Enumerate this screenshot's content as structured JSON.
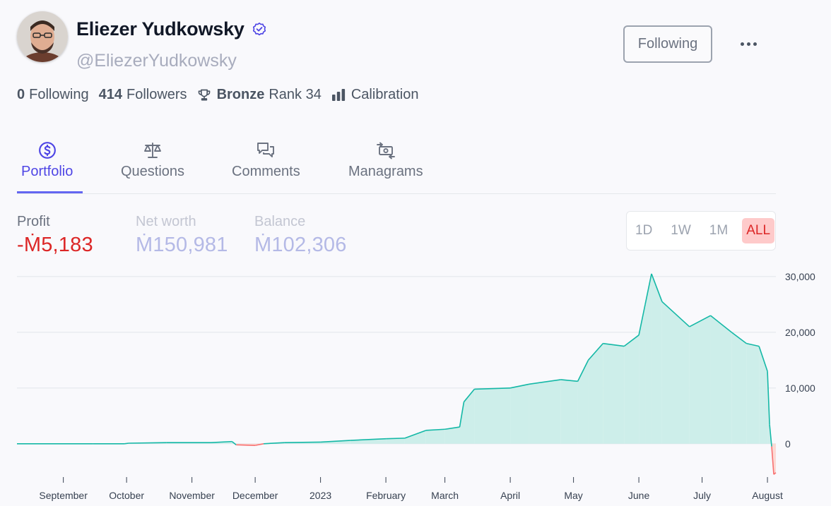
{
  "profile": {
    "name": "Eliezer Yudkowsky",
    "handle": "@EliezerYudkowsky",
    "follow_label": "Following",
    "verified_icon": "verified-badge-icon",
    "avatar_icon": "user-avatar"
  },
  "stats": {
    "following_count": "0",
    "following_label": "Following",
    "followers_count": "414",
    "followers_label": "Followers",
    "league": "Bronze",
    "rank_label": "Rank 34",
    "calibration_label": "Calibration"
  },
  "tabs": [
    {
      "label": "Portfolio",
      "icon": "dollar-circle-icon",
      "active": true
    },
    {
      "label": "Questions",
      "icon": "scale-icon",
      "active": false
    },
    {
      "label": "Comments",
      "icon": "chat-bubbles-icon",
      "active": false
    },
    {
      "label": "Managrams",
      "icon": "money-transfer-icon",
      "active": false
    }
  ],
  "metrics": {
    "profit_label": "Profit",
    "profit_value": "-Ṁ5,183",
    "networth_label": "Net worth",
    "networth_value": "Ṁ150,981",
    "balance_label": "Balance",
    "balance_value": "Ṁ102,306"
  },
  "range_buttons": [
    "1D",
    "1W",
    "1M",
    "ALL"
  ],
  "range_selected": "ALL",
  "colors": {
    "positive_line": "#14b8a6",
    "positive_fill": "#cdeeea",
    "negative_line": "#f87171",
    "negative_fill": "#fcd9d4",
    "accent": "#4f46e5",
    "loss_text": "#dc2626"
  },
  "chart_data": {
    "type": "area",
    "title": "",
    "xlabel": "",
    "ylabel": "",
    "x_ticks": [
      "September",
      "October",
      "November",
      "December",
      "2023",
      "February",
      "March",
      "April",
      "May",
      "June",
      "July",
      "August"
    ],
    "y_ticks": [
      "30,000",
      "20,000",
      "10,000",
      "0"
    ],
    "y_tick_values": [
      30000,
      20000,
      10000,
      0
    ],
    "ylim": [
      -7500,
      31000
    ],
    "grid": true,
    "series": [
      {
        "values": [
          {
            "x": "2022-08-10",
            "y": 0
          },
          {
            "x": "2022-09-15",
            "y": 0
          },
          {
            "x": "2022-09-30",
            "y": 0
          },
          {
            "x": "2022-10-02",
            "y": 100
          },
          {
            "x": "2022-10-20",
            "y": 200
          },
          {
            "x": "2022-11-10",
            "y": 200
          },
          {
            "x": "2022-11-20",
            "y": 400
          },
          {
            "x": "2022-11-22",
            "y": -200
          },
          {
            "x": "2022-12-01",
            "y": -300
          },
          {
            "x": "2022-12-05",
            "y": 0
          },
          {
            "x": "2022-12-15",
            "y": 200
          },
          {
            "x": "2023-01-01",
            "y": 300
          },
          {
            "x": "2023-01-15",
            "y": 600
          },
          {
            "x": "2023-02-01",
            "y": 900
          },
          {
            "x": "2023-02-10",
            "y": 1000
          },
          {
            "x": "2023-02-20",
            "y": 2400
          },
          {
            "x": "2023-03-01",
            "y": 2600
          },
          {
            "x": "2023-03-08",
            "y": 3000
          },
          {
            "x": "2023-03-10",
            "y": 7500
          },
          {
            "x": "2023-03-15",
            "y": 9800
          },
          {
            "x": "2023-04-01",
            "y": 10000
          },
          {
            "x": "2023-04-10",
            "y": 10700
          },
          {
            "x": "2023-04-25",
            "y": 11500
          },
          {
            "x": "2023-05-03",
            "y": 11200
          },
          {
            "x": "2023-05-08",
            "y": 15000
          },
          {
            "x": "2023-05-15",
            "y": 18000
          },
          {
            "x": "2023-05-25",
            "y": 17500
          },
          {
            "x": "2023-06-01",
            "y": 19500
          },
          {
            "x": "2023-06-04",
            "y": 25000
          },
          {
            "x": "2023-06-07",
            "y": 30500
          },
          {
            "x": "2023-06-12",
            "y": 25500
          },
          {
            "x": "2023-06-25",
            "y": 21000
          },
          {
            "x": "2023-07-05",
            "y": 23000
          },
          {
            "x": "2023-07-15",
            "y": 20000
          },
          {
            "x": "2023-07-22",
            "y": 18000
          },
          {
            "x": "2023-07-28",
            "y": 17500
          },
          {
            "x": "2023-08-01",
            "y": 13000
          },
          {
            "x": "2023-08-02",
            "y": 3500
          },
          {
            "x": "2023-08-03",
            "y": -500
          },
          {
            "x": "2023-08-04",
            "y": -5500
          },
          {
            "x": "2023-08-05",
            "y": -5183
          }
        ]
      }
    ]
  }
}
